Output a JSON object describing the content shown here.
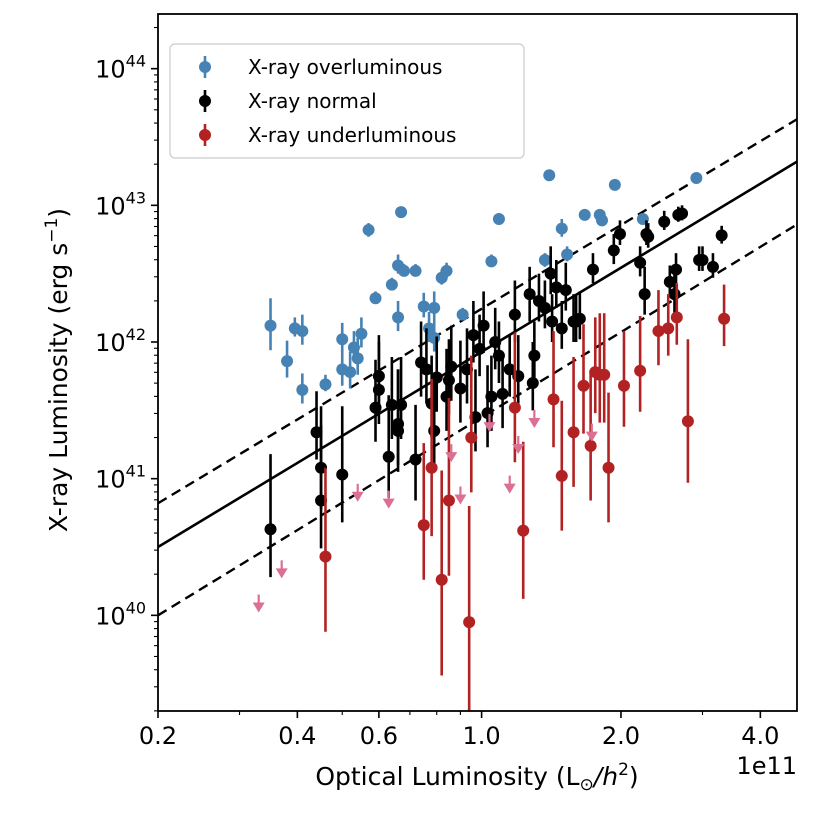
{
  "chart_data": {
    "type": "scatter",
    "title": "",
    "xlabel": "Optical Luminosity (L",
    "xlabel_sub": "⊙",
    "xlabel_tail": "/h",
    "xlabel_sup": "2",
    "xlabel_close": ")",
    "ylabel": "X-ray Luminosity (erg s",
    "ylabel_sup": "−1",
    "ylabel_close": ")",
    "x_scale": "log",
    "y_scale": "log",
    "xlim": [
      0.2,
      4.8
    ],
    "ylim_log10": [
      39.3,
      44.4
    ],
    "x_offset_text": "1e11",
    "x_ticks": [
      {
        "value": 0.2,
        "label": "0.2"
      },
      {
        "value": 0.4,
        "label": "0.4"
      },
      {
        "value": 0.6,
        "label": "0.6"
      },
      {
        "value": 1.0,
        "label": "1.0"
      },
      {
        "value": 2.0,
        "label": "2.0"
      },
      {
        "value": 4.0,
        "label": "4.0"
      }
    ],
    "y_ticks": [
      {
        "log": 40,
        "base": "10",
        "exp": "40"
      },
      {
        "log": 41,
        "base": "10",
        "exp": "41"
      },
      {
        "log": 42,
        "base": "10",
        "exp": "42"
      },
      {
        "log": 43,
        "base": "10",
        "exp": "43"
      },
      {
        "log": 44,
        "base": "10",
        "exp": "44"
      }
    ],
    "colors": {
      "overluminous": "#4682b4",
      "normal": "#000000",
      "underluminous": "#b22222",
      "upper_limit": "#db7093"
    },
    "legend": [
      {
        "label": "X-ray overluminous",
        "color": "#4682b4"
      },
      {
        "label": "X-ray normal",
        "color": "#000000"
      },
      {
        "label": "X-ray underluminous",
        "color": "#b22222"
      }
    ],
    "fit_lines": [
      {
        "name": "best-fit",
        "style": "solid",
        "p1": [
          0.2,
          40.5
        ],
        "p2": [
          4.8,
          43.32
        ]
      },
      {
        "name": "upper-scatter",
        "style": "dashed",
        "p1": [
          0.2,
          40.82
        ],
        "p2": [
          4.8,
          43.63
        ]
      },
      {
        "name": "lower-scatter",
        "style": "dashed",
        "p1": [
          0.2,
          40.0
        ],
        "p2": [
          4.8,
          42.86
        ]
      }
    ],
    "series": [
      {
        "name": "X-ray overluminous",
        "color": "#4682b4",
        "points": [
          [
            0.35,
            42.12,
            0.18,
            0.2
          ],
          [
            0.38,
            41.86,
            0.12,
            0.15
          ],
          [
            0.395,
            42.1,
            0.06,
            0.08
          ],
          [
            0.41,
            42.08,
            0.1,
            0.12
          ],
          [
            0.41,
            41.65,
            0.1,
            0.12
          ],
          [
            0.46,
            41.69,
            0.05,
            0.07
          ],
          [
            0.5,
            41.8,
            0.12,
            0.15
          ],
          [
            0.5,
            42.02,
            0.1,
            0.12
          ],
          [
            0.52,
            41.78,
            0.12,
            0.15
          ],
          [
            0.53,
            41.96,
            0.1,
            0.12
          ],
          [
            0.54,
            41.88,
            0.12,
            0.15
          ],
          [
            0.55,
            42.06,
            0.1,
            0.12
          ],
          [
            0.57,
            42.82,
            0.05,
            0.05
          ],
          [
            0.59,
            42.32,
            0.04,
            0.05
          ],
          [
            0.64,
            42.42,
            0.04,
            0.05
          ],
          [
            0.66,
            42.18,
            0.1,
            0.12
          ],
          [
            0.66,
            42.56,
            0.06,
            0.08
          ],
          [
            0.67,
            42.95,
            0.03,
            0.03
          ],
          [
            0.68,
            42.52,
            0.04,
            0.05
          ],
          [
            0.72,
            42.52,
            0.04,
            0.05
          ],
          [
            0.75,
            42.26,
            0.08,
            0.1
          ],
          [
            0.77,
            42.1,
            0.1,
            0.12
          ],
          [
            0.79,
            42.25,
            0.1,
            0.12
          ],
          [
            0.79,
            42.03,
            0.1,
            0.12
          ],
          [
            0.82,
            42.47,
            0.05,
            0.06
          ],
          [
            0.84,
            42.52,
            0.05,
            0.06
          ],
          [
            0.91,
            42.2,
            0.04,
            0.05
          ],
          [
            1.05,
            42.59,
            0.04,
            0.05
          ],
          [
            1.09,
            42.9,
            0.03,
            0.03
          ],
          [
            1.37,
            42.6,
            0.05,
            0.05
          ],
          [
            1.4,
            43.22,
            0.03,
            0.03
          ],
          [
            1.49,
            42.83,
            0.06,
            0.07
          ],
          [
            1.53,
            42.64,
            0.05,
            0.06
          ],
          [
            1.67,
            42.93,
            0.03,
            0.03
          ],
          [
            1.8,
            42.93,
            0.03,
            0.03
          ],
          [
            1.82,
            42.89,
            0.04,
            0.05
          ],
          [
            1.94,
            43.15,
            0.03,
            0.03
          ],
          [
            2.23,
            42.9,
            0.03,
            0.03
          ],
          [
            2.91,
            43.2,
            0.03,
            0.03
          ]
        ]
      },
      {
        "name": "X-ray normal",
        "color": "#000000",
        "points": [
          [
            0.35,
            40.63,
            0.35,
            0.55
          ],
          [
            0.44,
            41.34,
            0.2,
            0.3
          ],
          [
            0.45,
            41.08,
            0.3,
            0.45
          ],
          [
            0.45,
            40.84,
            0.35,
            0.55
          ],
          [
            0.5,
            41.03,
            0.35,
            0.5
          ],
          [
            0.59,
            41.52,
            0.25,
            0.35
          ],
          [
            0.6,
            41.75,
            0.25,
            0.3
          ],
          [
            0.6,
            41.65,
            0.25,
            0.35
          ],
          [
            0.63,
            41.16,
            0.3,
            0.45
          ],
          [
            0.64,
            41.54,
            0.25,
            0.35
          ],
          [
            0.66,
            41.4,
            0.3,
            0.4
          ],
          [
            0.66,
            41.35,
            0.3,
            0.45
          ],
          [
            0.67,
            41.54,
            0.25,
            0.35
          ],
          [
            0.72,
            41.14,
            0.3,
            0.4
          ],
          [
            0.74,
            41.85,
            0.25,
            0.3
          ],
          [
            0.76,
            41.8,
            0.25,
            0.3
          ],
          [
            0.78,
            41.55,
            0.25,
            0.35
          ],
          [
            0.79,
            41.35,
            0.3,
            0.4
          ],
          [
            0.8,
            41.74,
            0.25,
            0.3
          ],
          [
            0.84,
            41.6,
            0.25,
            0.35
          ],
          [
            0.85,
            41.72,
            0.25,
            0.3
          ],
          [
            0.86,
            41.82,
            0.25,
            0.3
          ],
          [
            0.9,
            41.66,
            0.25,
            0.35
          ],
          [
            0.93,
            41.8,
            0.25,
            0.3
          ],
          [
            0.96,
            42.05,
            0.2,
            0.25
          ],
          [
            0.97,
            41.45,
            0.25,
            0.35
          ],
          [
            0.99,
            41.95,
            0.2,
            0.25
          ],
          [
            1.01,
            42.12,
            0.2,
            0.25
          ],
          [
            1.03,
            41.48,
            0.25,
            0.35
          ],
          [
            1.05,
            41.6,
            0.25,
            0.3
          ],
          [
            1.07,
            42.0,
            0.2,
            0.25
          ],
          [
            1.09,
            41.9,
            0.2,
            0.25
          ],
          [
            1.11,
            41.62,
            0.25,
            0.3
          ],
          [
            1.15,
            41.8,
            0.2,
            0.25
          ],
          [
            1.18,
            42.2,
            0.2,
            0.25
          ],
          [
            1.2,
            41.75,
            0.2,
            0.3
          ],
          [
            1.27,
            42.35,
            0.2,
            0.2
          ],
          [
            1.29,
            41.7,
            0.2,
            0.3
          ],
          [
            1.3,
            41.9,
            0.2,
            0.25
          ],
          [
            1.33,
            42.3,
            0.15,
            0.2
          ],
          [
            1.37,
            42.25,
            0.15,
            0.2
          ],
          [
            1.41,
            42.5,
            0.15,
            0.2
          ],
          [
            1.42,
            42.15,
            0.15,
            0.2
          ],
          [
            1.45,
            42.4,
            0.15,
            0.2
          ],
          [
            1.49,
            42.1,
            0.15,
            0.2
          ],
          [
            1.52,
            42.38,
            0.15,
            0.2
          ],
          [
            1.58,
            42.15,
            0.15,
            0.2
          ],
          [
            1.6,
            42.15,
            0.15,
            0.2
          ],
          [
            1.63,
            42.17,
            0.15,
            0.2
          ],
          [
            1.74,
            42.53,
            0.1,
            0.12
          ],
          [
            1.93,
            42.67,
            0.1,
            0.12
          ],
          [
            1.99,
            42.79,
            0.08,
            0.1
          ],
          [
            2.2,
            42.58,
            0.1,
            0.12
          ],
          [
            2.25,
            42.35,
            0.15,
            0.2
          ],
          [
            2.27,
            42.79,
            0.08,
            0.1
          ],
          [
            2.29,
            42.77,
            0.08,
            0.1
          ],
          [
            2.48,
            42.88,
            0.06,
            0.08
          ],
          [
            2.55,
            42.44,
            0.1,
            0.12
          ],
          [
            2.61,
            42.35,
            0.15,
            0.2
          ],
          [
            2.63,
            42.53,
            0.1,
            0.12
          ],
          [
            2.66,
            42.93,
            0.05,
            0.06
          ],
          [
            2.71,
            42.94,
            0.05,
            0.06
          ],
          [
            2.95,
            42.6,
            0.08,
            0.1
          ],
          [
            3.0,
            42.6,
            0.08,
            0.1
          ],
          [
            3.16,
            42.55,
            0.08,
            0.1
          ],
          [
            3.3,
            42.78,
            0.06,
            0.07
          ]
        ]
      },
      {
        "name": "X-ray underluminous",
        "color": "#b22222",
        "points": [
          [
            0.46,
            40.43,
            0.55,
            0.65
          ],
          [
            0.75,
            40.66,
            0.4,
            0.6
          ],
          [
            0.78,
            41.08,
            0.5,
            0.65
          ],
          [
            0.82,
            40.26,
            0.7,
            0.8
          ],
          [
            0.85,
            40.84,
            0.55,
            0.75
          ],
          [
            0.94,
            39.95,
            0.65,
            0.85
          ],
          [
            0.95,
            41.3,
            0.4,
            0.6
          ],
          [
            1.18,
            41.52,
            0.4,
            0.55
          ],
          [
            1.23,
            40.62,
            0.5,
            0.65
          ],
          [
            1.43,
            41.58,
            0.35,
            0.5
          ],
          [
            1.49,
            41.02,
            0.4,
            0.55
          ],
          [
            1.58,
            41.34,
            0.4,
            0.55
          ],
          [
            1.66,
            41.68,
            0.35,
            0.45
          ],
          [
            1.72,
            41.24,
            0.4,
            0.55
          ],
          [
            1.76,
            41.78,
            0.3,
            0.4
          ],
          [
            1.8,
            41.76,
            0.35,
            0.45
          ],
          [
            1.84,
            41.76,
            0.35,
            0.45
          ],
          [
            1.88,
            41.08,
            0.4,
            0.55
          ],
          [
            2.03,
            41.68,
            0.3,
            0.4
          ],
          [
            2.2,
            41.79,
            0.3,
            0.4
          ],
          [
            2.41,
            42.08,
            0.25,
            0.3
          ],
          [
            2.53,
            42.1,
            0.2,
            0.25
          ],
          [
            2.64,
            42.18,
            0.2,
            0.25
          ],
          [
            2.79,
            41.42,
            0.45,
            0.6
          ],
          [
            3.34,
            42.17,
            0.2,
            0.25
          ]
        ]
      },
      {
        "name": "upper limits",
        "color": "#db7093",
        "kind": "upper_limit",
        "points": [
          [
            0.33,
            40.05
          ],
          [
            0.37,
            40.3
          ],
          [
            0.54,
            40.86
          ],
          [
            0.63,
            40.81
          ],
          [
            0.86,
            41.15
          ],
          [
            0.9,
            40.84
          ],
          [
            1.04,
            41.37
          ],
          [
            1.15,
            40.92
          ],
          [
            1.2,
            41.21
          ],
          [
            1.3,
            41.4
          ],
          [
            1.73,
            41.3
          ]
        ]
      }
    ]
  }
}
